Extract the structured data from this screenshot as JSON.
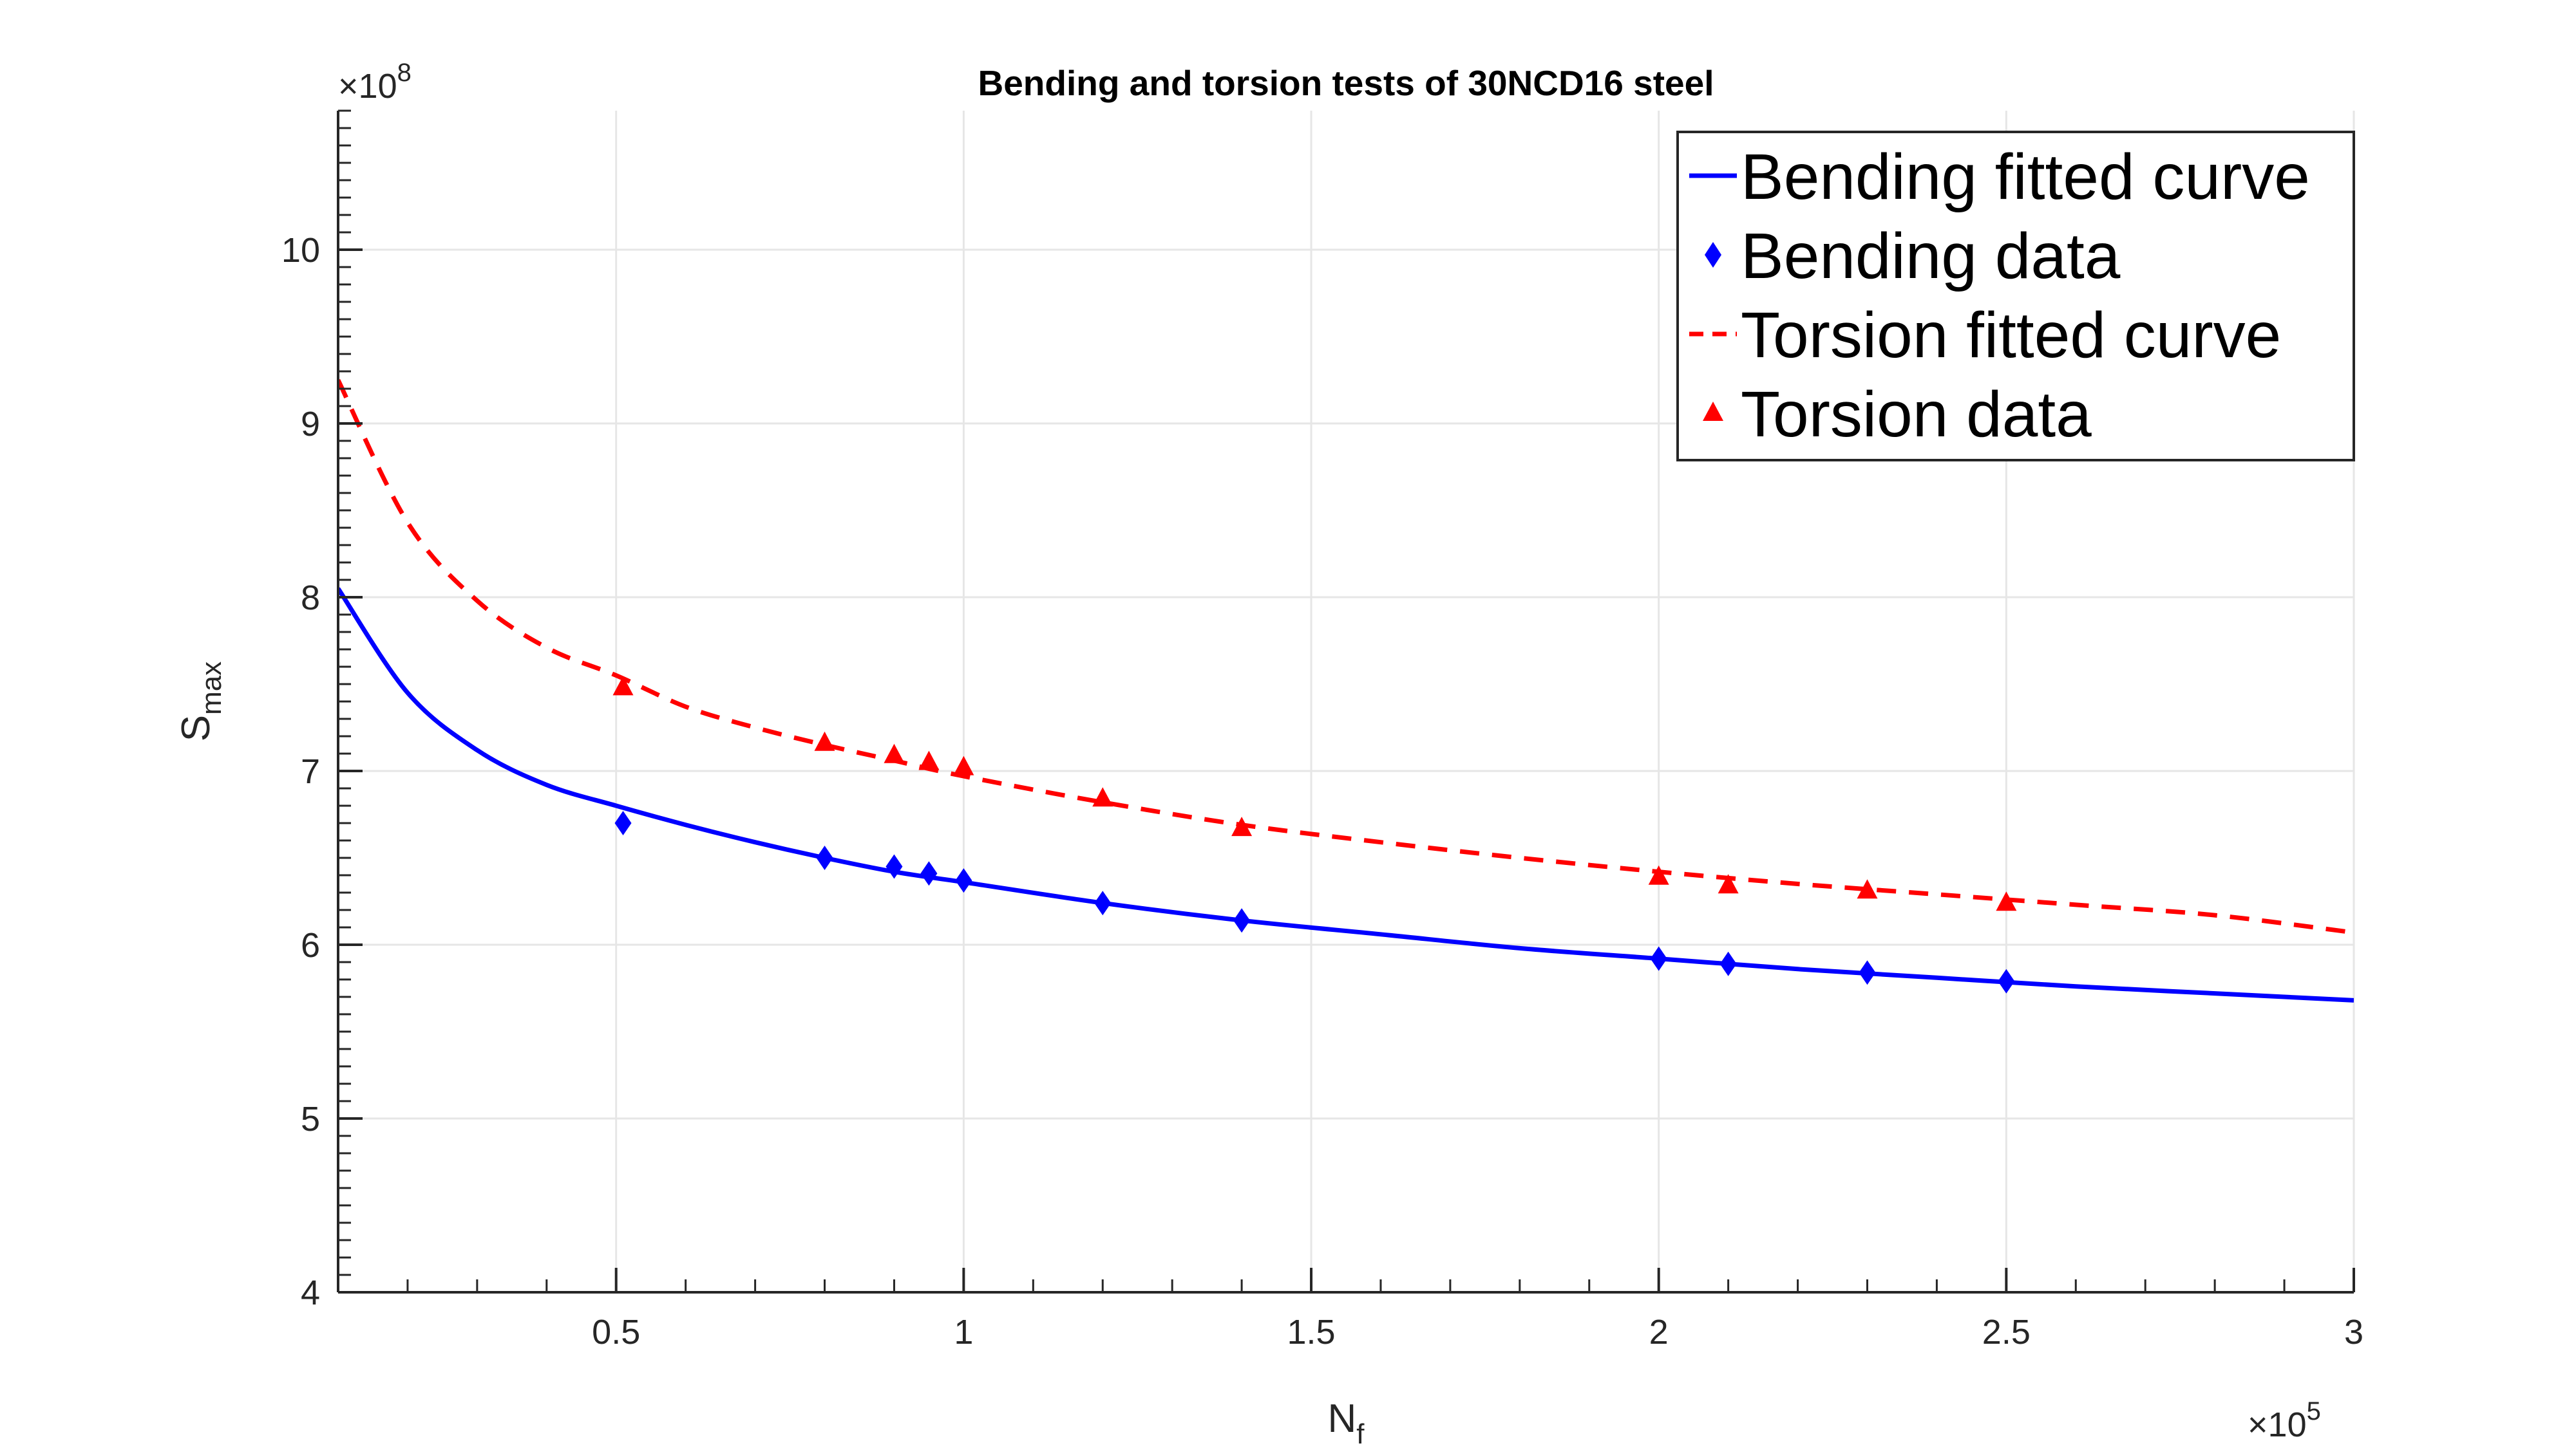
{
  "chart_data": {
    "type": "line",
    "title": "Bending and torsion tests of 30NCD16 steel",
    "xlabel": {
      "main": "N",
      "sub": "f"
    },
    "ylabel": {
      "main": "S",
      "sub": "max"
    },
    "x_exponent": {
      "base": "×10",
      "power": "5"
    },
    "y_exponent": {
      "base": "×10",
      "power": "8"
    },
    "xlim": [
      10000,
      300000
    ],
    "ylim": [
      400000000,
      1080000000
    ],
    "x_ticks": [
      {
        "value": 50000,
        "label": "0.5"
      },
      {
        "value": 100000,
        "label": "1"
      },
      {
        "value": 150000,
        "label": "1.5"
      },
      {
        "value": 200000,
        "label": "2"
      },
      {
        "value": 250000,
        "label": "2.5"
      },
      {
        "value": 300000,
        "label": "3"
      }
    ],
    "y_ticks": [
      {
        "value": 400000000,
        "label": "4"
      },
      {
        "value": 500000000,
        "label": "5"
      },
      {
        "value": 600000000,
        "label": "6"
      },
      {
        "value": 700000000,
        "label": "7"
      },
      {
        "value": 800000000,
        "label": "8"
      },
      {
        "value": 900000000,
        "label": "9"
      },
      {
        "value": 1000000000,
        "label": "10"
      }
    ],
    "grid": true,
    "legend_position": "top-right",
    "series": [
      {
        "name": "Bending fitted curve",
        "kind": "line",
        "style": "solid",
        "color": "#0000ff",
        "x": [
          10000,
          20000,
          30000,
          40000,
          50000,
          60000,
          70000,
          80000,
          90000,
          100000,
          120000,
          140000,
          160000,
          180000,
          200000,
          220000,
          240000,
          260000,
          280000,
          300000
        ],
        "y": [
          805000000,
          745000000,
          712000000,
          692000000,
          680000000,
          669000000,
          659000000,
          650000000,
          642000000,
          636000000,
          624000000,
          614000000,
          606000000,
          598000000,
          592000000,
          586000000,
          581000000,
          576000000,
          572000000,
          568000000
        ]
      },
      {
        "name": "Bending data",
        "kind": "marker",
        "marker": "diamond",
        "color": "#0000ff",
        "x": [
          51000,
          80000,
          90000,
          95000,
          100000,
          120000,
          140000,
          200000,
          210000,
          230000,
          250000
        ],
        "y": [
          670000000,
          650000000,
          645000000,
          641000000,
          637000000,
          624000000,
          614000000,
          592000000,
          589000000,
          584000000,
          579000000
        ]
      },
      {
        "name": "Torsion fitted curve",
        "kind": "line",
        "style": "dashed",
        "color": "#ff0000",
        "x": [
          10000,
          20000,
          30000,
          40000,
          50000,
          60000,
          70000,
          80000,
          90000,
          100000,
          120000,
          140000,
          160000,
          180000,
          200000,
          220000,
          240000,
          260000,
          280000,
          300000
        ],
        "y": [
          925000000,
          843000000,
          798000000,
          771000000,
          755000000,
          737000000,
          725000000,
          715000000,
          706000000,
          697000000,
          682000000,
          669000000,
          659000000,
          650000000,
          642000000,
          635000000,
          629000000,
          623000000,
          617000000,
          607000000
        ]
      },
      {
        "name": "Torsion data",
        "kind": "marker",
        "marker": "triangle",
        "color": "#ff0000",
        "x": [
          51000,
          80000,
          90000,
          95000,
          100000,
          120000,
          140000,
          200000,
          210000,
          230000,
          250000
        ],
        "y": [
          748000000,
          716000000,
          709000000,
          705000000,
          702000000,
          684000000,
          667000000,
          639000000,
          634000000,
          631000000,
          624000000
        ]
      }
    ]
  }
}
